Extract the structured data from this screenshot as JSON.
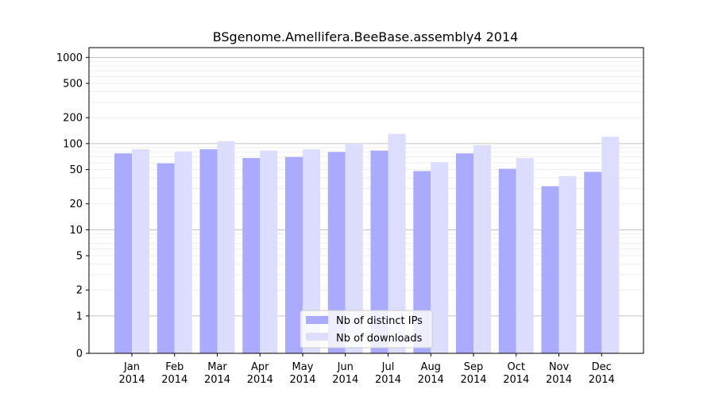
{
  "chart_data": {
    "type": "bar",
    "title": "BSgenome.Amellifera.BeeBase.assembly4 2014",
    "xlabel": "",
    "ylabel": "",
    "y_scale": "symlog",
    "yticks": [
      "0",
      "1",
      "2",
      "5",
      "10",
      "20",
      "50",
      "100",
      "200",
      "500",
      "1000"
    ],
    "ylim": [
      0,
      1300
    ],
    "grid": "horizontal",
    "legend_position": "bottom-center",
    "categories": [
      [
        "Jan",
        "2014"
      ],
      [
        "Feb",
        "2014"
      ],
      [
        "Mar",
        "2014"
      ],
      [
        "Apr",
        "2014"
      ],
      [
        "May",
        "2014"
      ],
      [
        "Jun",
        "2014"
      ],
      [
        "Jul",
        "2014"
      ],
      [
        "Aug",
        "2014"
      ],
      [
        "Sep",
        "2014"
      ],
      [
        "Oct",
        "2014"
      ],
      [
        "Nov",
        "2014"
      ],
      [
        "Dec",
        "2014"
      ]
    ],
    "series": [
      {
        "name": "Nb of distinct IPs",
        "color": "#aaaaff",
        "values": [
          77,
          59,
          86,
          68,
          70,
          80,
          83,
          48,
          77,
          51,
          32,
          47
        ]
      },
      {
        "name": "Nb of downloads",
        "color": "#ddddff",
        "values": [
          86,
          81,
          107,
          83,
          86,
          100,
          130,
          61,
          96,
          68,
          42,
          120
        ]
      }
    ]
  }
}
